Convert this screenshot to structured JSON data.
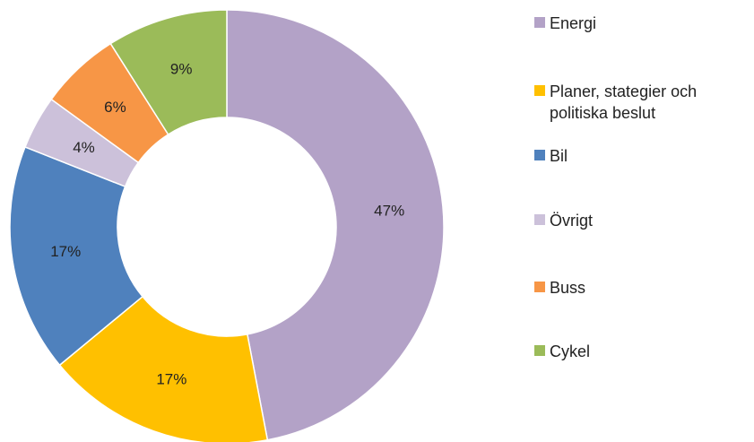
{
  "chart_data": {
    "type": "donut",
    "categories": [
      "Energi",
      "Planer, stategier och politiska beslut",
      "Bil",
      "Övrigt",
      "Buss",
      "Cykel"
    ],
    "values": [
      47,
      17,
      17,
      4,
      6,
      9
    ],
    "value_labels": [
      "47%",
      "17%",
      "17%",
      "4%",
      "6%",
      "9%"
    ],
    "colors": [
      "#b3a2c7",
      "#ffc000",
      "#4f81bd",
      "#ccc1da",
      "#f79646",
      "#9bbb59"
    ],
    "legend": "right"
  }
}
